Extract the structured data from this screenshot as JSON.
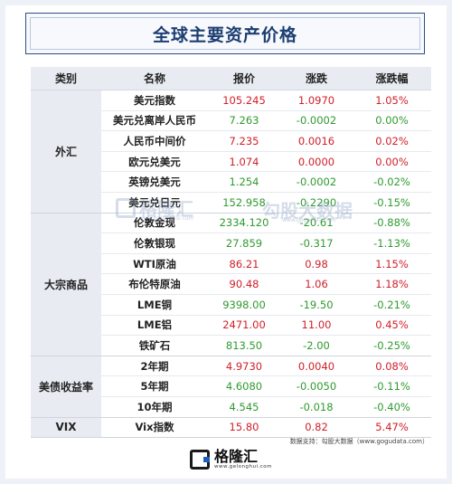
{
  "title": "全球主要资产价格",
  "columns": [
    "类别",
    "名称",
    "报价",
    "涨跌",
    "涨跌幅"
  ],
  "groups": [
    {
      "category": "外汇",
      "rows": [
        {
          "name": "美元指数",
          "price": "105.245",
          "change": "1.0970",
          "pct": "1.05%",
          "dir": "up"
        },
        {
          "name": "美元兑离岸人民币",
          "price": "7.263",
          "change": "-0.0002",
          "pct": "0.00%",
          "dir": "down"
        },
        {
          "name": "人民币中间价",
          "price": "7.235",
          "change": "0.0016",
          "pct": "0.02%",
          "dir": "up"
        },
        {
          "name": "欧元兑美元",
          "price": "1.074",
          "change": "0.0000",
          "pct": "0.00%",
          "dir": "up"
        },
        {
          "name": "英镑兑美元",
          "price": "1.254",
          "change": "-0.0002",
          "pct": "-0.02%",
          "dir": "down"
        },
        {
          "name": "美元兑日元",
          "price": "152.958",
          "change": "-0.2290",
          "pct": "-0.15%",
          "dir": "down"
        }
      ]
    },
    {
      "category": "大宗商品",
      "rows": [
        {
          "name": "伦敦金现",
          "price": "2334.120",
          "change": "-20.61",
          "pct": "-0.88%",
          "dir": "down"
        },
        {
          "name": "伦敦银现",
          "price": "27.859",
          "change": "-0.317",
          "pct": "-1.13%",
          "dir": "down"
        },
        {
          "name": "WTI原油",
          "price": "86.21",
          "change": "0.98",
          "pct": "1.15%",
          "dir": "up"
        },
        {
          "name": "布伦特原油",
          "price": "90.48",
          "change": "1.06",
          "pct": "1.18%",
          "dir": "up"
        },
        {
          "name": "LME铜",
          "price": "9398.00",
          "change": "-19.50",
          "pct": "-0.21%",
          "dir": "down"
        },
        {
          "name": "LME铝",
          "price": "2471.00",
          "change": "11.00",
          "pct": "0.45%",
          "dir": "up"
        },
        {
          "name": "铁矿石",
          "price": "813.50",
          "change": "-2.00",
          "pct": "-0.25%",
          "dir": "down"
        }
      ]
    },
    {
      "category": "美债收益率",
      "rows": [
        {
          "name": "2年期",
          "price": "4.9730",
          "change": "0.0040",
          "pct": "0.08%",
          "dir": "up"
        },
        {
          "name": "5年期",
          "price": "4.6080",
          "change": "-0.0050",
          "pct": "-0.11%",
          "dir": "down"
        },
        {
          "name": "10年期",
          "price": "4.545",
          "change": "-0.018",
          "pct": "-0.40%",
          "dir": "down"
        }
      ]
    },
    {
      "category": "VIX",
      "rows": [
        {
          "name": "Vix指数",
          "price": "15.80",
          "change": "0.82",
          "pct": "5.47%",
          "dir": "up"
        }
      ]
    }
  ],
  "source": "数据支持：勾股大数据（www.gogudata.com）",
  "footer": {
    "brand": "格隆汇",
    "url": "www.gelonghui.com"
  },
  "watermark": {
    "brand": "格隆汇",
    "brand_url": "www.gelonghui.com",
    "data": "勾股大数据",
    "data_url": "www.gogudata.com"
  },
  "colors": {
    "up": "#d0202a",
    "down": "#2f9a2f",
    "header_bg": "#e8ecf2",
    "title": "#1d3e72"
  }
}
